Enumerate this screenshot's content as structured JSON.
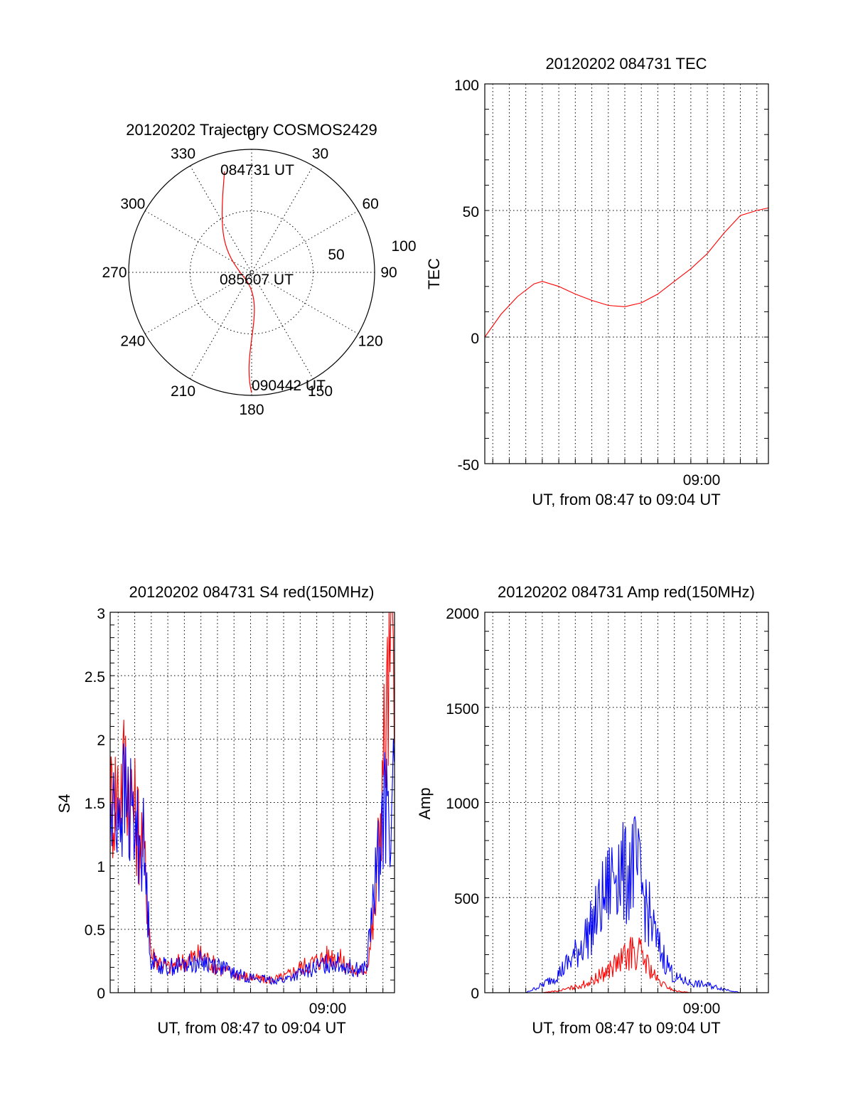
{
  "colors": {
    "red": "#ff0000",
    "blue": "#0000ff",
    "axis": "#000000",
    "background": "#ffffff"
  },
  "polar": {
    "title": "20120202 Trajectory COSMOS2429",
    "azimuth_labels": [
      "0",
      "30",
      "60",
      "90",
      "120",
      "150",
      "180",
      "210",
      "240",
      "270",
      "300",
      "330"
    ],
    "ring_labels": [
      "50",
      "100"
    ],
    "points": [
      {
        "label": "084731 UT",
        "azimuth": 345,
        "radius": 85
      },
      {
        "label": "085607 UT",
        "azimuth": 190,
        "radius": 5
      },
      {
        "label": "090442 UT",
        "azimuth": 180,
        "radius": 98
      }
    ]
  },
  "chart_data": [
    {
      "type": "line",
      "title": "20120202 084731 TEC",
      "xlabel": "UT, from 08:47 to 09:04 UT",
      "ylabel": "TEC",
      "xlim": [
        "08:47:31",
        "09:04:42"
      ],
      "x_tick_labels": [
        "09:00"
      ],
      "ylim": [
        -50,
        100
      ],
      "y_tick_labels": [
        "-50",
        "0",
        "50",
        "100"
      ],
      "grid": true,
      "series": [
        {
          "color": "#ff0000",
          "x": [
            "08:47:31",
            "08:48:30",
            "08:49:30",
            "08:50:30",
            "08:51:00",
            "08:52:00",
            "08:53:00",
            "08:54:00",
            "08:55:00",
            "08:56:00",
            "08:57:00",
            "08:58:00",
            "08:59:00",
            "09:00:00",
            "09:01:00",
            "09:02:00",
            "09:03:00",
            "09:04:00",
            "09:04:42"
          ],
          "y": [
            0,
            9,
            16,
            21,
            22,
            20,
            17,
            14.5,
            12.5,
            12,
            13.5,
            17,
            22,
            27,
            33,
            41,
            48,
            50,
            51
          ]
        }
      ]
    },
    {
      "type": "line",
      "title": "20120202 084731 S4 red(150MHz)",
      "xlabel": "UT, from 08:47 to 09:04 UT",
      "ylabel": "S4",
      "xlim": [
        "08:47:31",
        "09:04:42"
      ],
      "x_tick_labels": [
        "09:00"
      ],
      "ylim": [
        0,
        3
      ],
      "y_tick_labels": [
        "0",
        "0.5",
        "1",
        "1.5",
        "2",
        "2.5",
        "3"
      ],
      "grid": true,
      "series": [
        {
          "color": "#ff0000",
          "x": [
            "08:47:31",
            "08:48:00",
            "08:48:30",
            "08:49:00",
            "08:49:30",
            "08:50:00",
            "08:51:00",
            "08:52:00",
            "08:53:00",
            "08:54:00",
            "08:55:00",
            "08:56:00",
            "08:57:00",
            "08:58:00",
            "08:59:00",
            "09:00:00",
            "09:01:00",
            "09:02:00",
            "09:02:30",
            "09:03:00",
            "09:03:30",
            "09:04:00",
            "09:04:42"
          ],
          "y": [
            1.5,
            1.6,
            1.8,
            1.4,
            1.2,
            0.3,
            0.2,
            0.25,
            0.3,
            0.2,
            0.15,
            0.12,
            0.1,
            0.12,
            0.2,
            0.25,
            0.3,
            0.2,
            0.15,
            0.2,
            0.6,
            1.8,
            3.0
          ]
        },
        {
          "color": "#0000ff",
          "x": [
            "08:47:31",
            "08:48:00",
            "08:48:30",
            "08:49:00",
            "08:49:30",
            "08:50:00",
            "08:51:00",
            "08:52:00",
            "08:53:00",
            "08:54:00",
            "08:55:00",
            "08:56:00",
            "08:57:00",
            "08:58:00",
            "08:59:00",
            "09:00:00",
            "09:01:00",
            "09:02:00",
            "09:02:30",
            "09:03:00",
            "09:03:30",
            "09:04:00",
            "09:04:42"
          ],
          "y": [
            1.3,
            1.5,
            1.5,
            1.3,
            1.2,
            0.25,
            0.2,
            0.22,
            0.25,
            0.22,
            0.15,
            0.12,
            0.1,
            0.1,
            0.15,
            0.2,
            0.25,
            0.2,
            0.18,
            0.2,
            0.8,
            1.4,
            1.5
          ]
        }
      ]
    },
    {
      "type": "line",
      "title": "20120202 084731 Amp red(150MHz)",
      "xlabel": "UT, from 08:47 to 09:04 UT",
      "ylabel": "Amp",
      "xlim": [
        "08:47:31",
        "09:04:42"
      ],
      "x_tick_labels": [
        "09:00"
      ],
      "ylim": [
        0,
        2000
      ],
      "y_tick_labels": [
        "0",
        "500",
        "1000",
        "1500",
        "2000"
      ],
      "grid": true,
      "series": [
        {
          "color": "#0000ff",
          "x": [
            "08:47:31",
            "08:50:00",
            "08:51:00",
            "08:52:00",
            "08:53:00",
            "08:54:00",
            "08:55:00",
            "08:55:30",
            "08:56:00",
            "08:56:30",
            "08:57:00",
            "08:57:30",
            "08:58:00",
            "08:59:00",
            "09:00:00",
            "09:01:00",
            "09:02:00",
            "09:03:00",
            "09:04:42"
          ],
          "y": [
            0,
            0,
            40,
            100,
            200,
            350,
            550,
            700,
            600,
            700,
            550,
            400,
            250,
            80,
            50,
            40,
            20,
            0,
            0
          ]
        },
        {
          "color": "#ff0000",
          "x": [
            "08:47:31",
            "08:51:00",
            "08:52:00",
            "08:53:00",
            "08:54:00",
            "08:55:00",
            "08:56:00",
            "08:56:30",
            "08:57:00",
            "08:57:30",
            "08:58:00",
            "08:59:00",
            "09:00:00",
            "09:04:42"
          ],
          "y": [
            0,
            0,
            10,
            30,
            60,
            120,
            180,
            220,
            200,
            130,
            60,
            10,
            0,
            0
          ]
        }
      ]
    }
  ]
}
